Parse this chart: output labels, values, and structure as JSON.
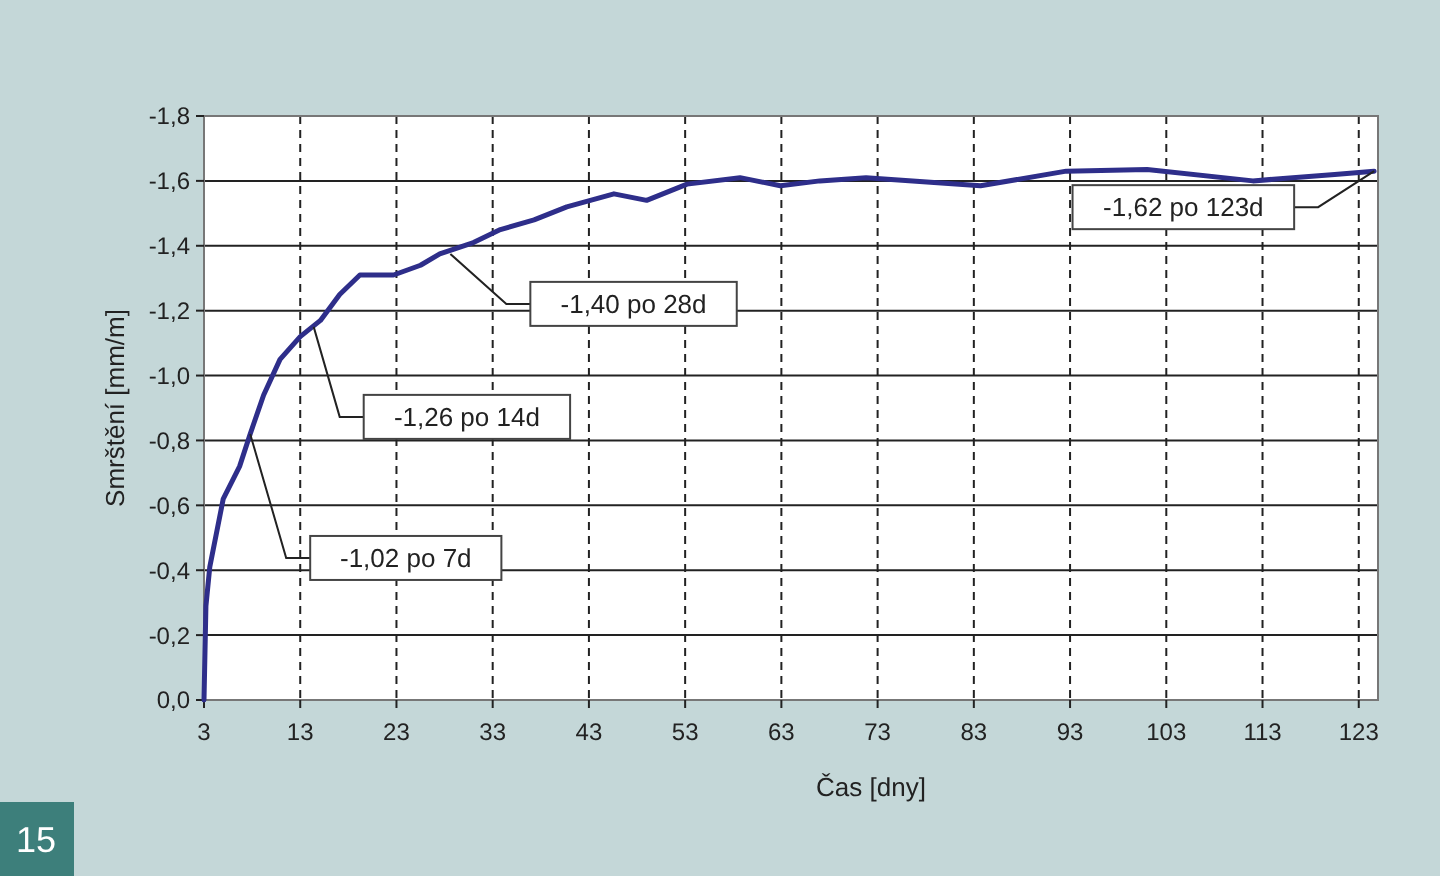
{
  "chart_data": {
    "type": "line",
    "xlabel": "Čas [dny]",
    "ylabel": "Smrštění [mm/m]",
    "x": [
      3,
      3.2,
      3.6,
      5,
      6.7,
      7.8,
      9.2,
      10.9,
      13,
      15.1,
      17.1,
      19.2,
      22.7,
      25.5,
      27.5,
      31,
      33.8,
      37.3,
      40.7,
      45.6,
      49,
      53.2,
      58.7,
      62.9,
      67,
      71.8,
      83.7,
      92.6,
      101,
      112,
      120.5,
      124.6
    ],
    "series": [
      {
        "color": "#2e2e8a",
        "values": [
          0,
          -0.29,
          -0.41,
          -0.62,
          -0.72,
          -0.82,
          -0.94,
          -1.05,
          -1.12,
          -1.17,
          -1.25,
          -1.31,
          -1.31,
          -1.34,
          -1.375,
          -1.41,
          -1.45,
          -1.48,
          -1.52,
          -1.56,
          -1.54,
          -1.59,
          -1.61,
          -1.585,
          -1.6,
          -1.61,
          -1.585,
          -1.63,
          -1.635,
          -1.6,
          -1.62,
          -1.63
        ]
      }
    ],
    "xlim": [
      3,
      125
    ],
    "xticks": [
      3,
      13,
      23,
      33,
      43,
      53,
      63,
      73,
      83,
      93,
      103,
      113,
      123
    ],
    "ylim": [
      0,
      -1.8
    ],
    "yticks": [
      {
        "value": 0,
        "label": "0,0"
      },
      {
        "value": -0.2,
        "label": "-0,2"
      },
      {
        "value": -0.4,
        "label": "-0,4"
      },
      {
        "value": -0.6,
        "label": "-0,6"
      },
      {
        "value": -0.8,
        "label": "-0,8"
      },
      {
        "value": -1,
        "label": "-1,0"
      },
      {
        "value": -1.2,
        "label": "-1,2"
      },
      {
        "value": -1.4,
        "label": "-1,4"
      },
      {
        "value": -1.6,
        "label": "-1,6"
      },
      {
        "value": -1.8,
        "label": "-1,8"
      }
    ],
    "grid": true,
    "line_style": "solid",
    "annotations": [
      {
        "text": "-1,02 po 7d",
        "x": 7.8,
        "y": -0.82
      },
      {
        "text": "-1,26 po 14d",
        "x": 14.4,
        "y": -1.15
      },
      {
        "text": "-1,40 po 28d",
        "x": 28.6,
        "y": -1.375
      },
      {
        "text": "-1,62 po 123d",
        "x": 124.6,
        "y": -1.63
      },
      "15"
    ]
  }
}
